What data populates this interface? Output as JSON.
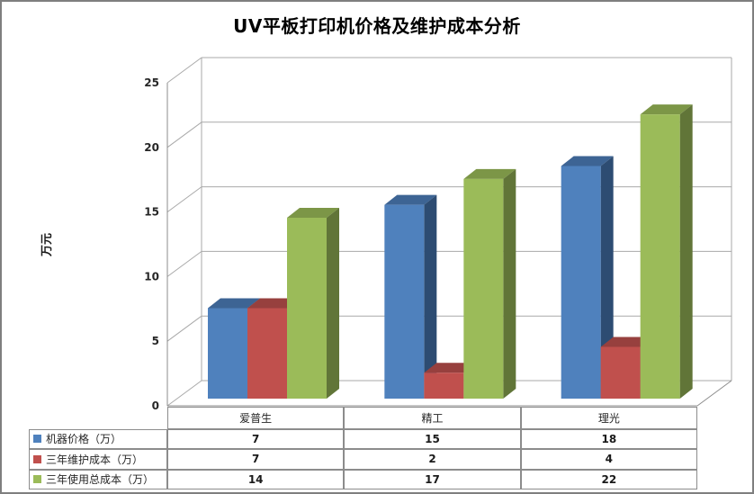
{
  "page": {
    "background": "#ffffff",
    "border_color": "#7f7f7f"
  },
  "chart_data": {
    "type": "bar",
    "style": "3d-clustered-column",
    "title": "UV平板打印机价格及维护成本分析",
    "xlabel": "",
    "ylabel": "万元",
    "categories": [
      "爱普生",
      "精工",
      "理光"
    ],
    "series": [
      {
        "name": "机器价格（万）",
        "color": "#4F81BD",
        "top_color": "#3D6494",
        "side_color": "#2D4C72",
        "values": [
          7,
          15,
          18
        ]
      },
      {
        "name": "三年维护成本（万）",
        "color": "#C0504D",
        "top_color": "#97403E",
        "side_color": "#783230",
        "values": [
          7,
          2,
          4
        ]
      },
      {
        "name": "三年使用总成本（万）",
        "color": "#9BBB59",
        "top_color": "#7C9647",
        "side_color": "#617538",
        "values": [
          14,
          17,
          22
        ]
      }
    ],
    "ylim": [
      0,
      25
    ],
    "yticks": [
      0,
      5,
      10,
      15,
      20,
      25
    ],
    "grid": true,
    "legend_position": "data-table-left",
    "data_table_shown": true
  },
  "colors": {
    "gridline": "#a9a9a9",
    "axis_line": "#8c8c8c",
    "table_border": "#8c8c8c",
    "tick_text": "#262626",
    "title_text": "#000000"
  }
}
